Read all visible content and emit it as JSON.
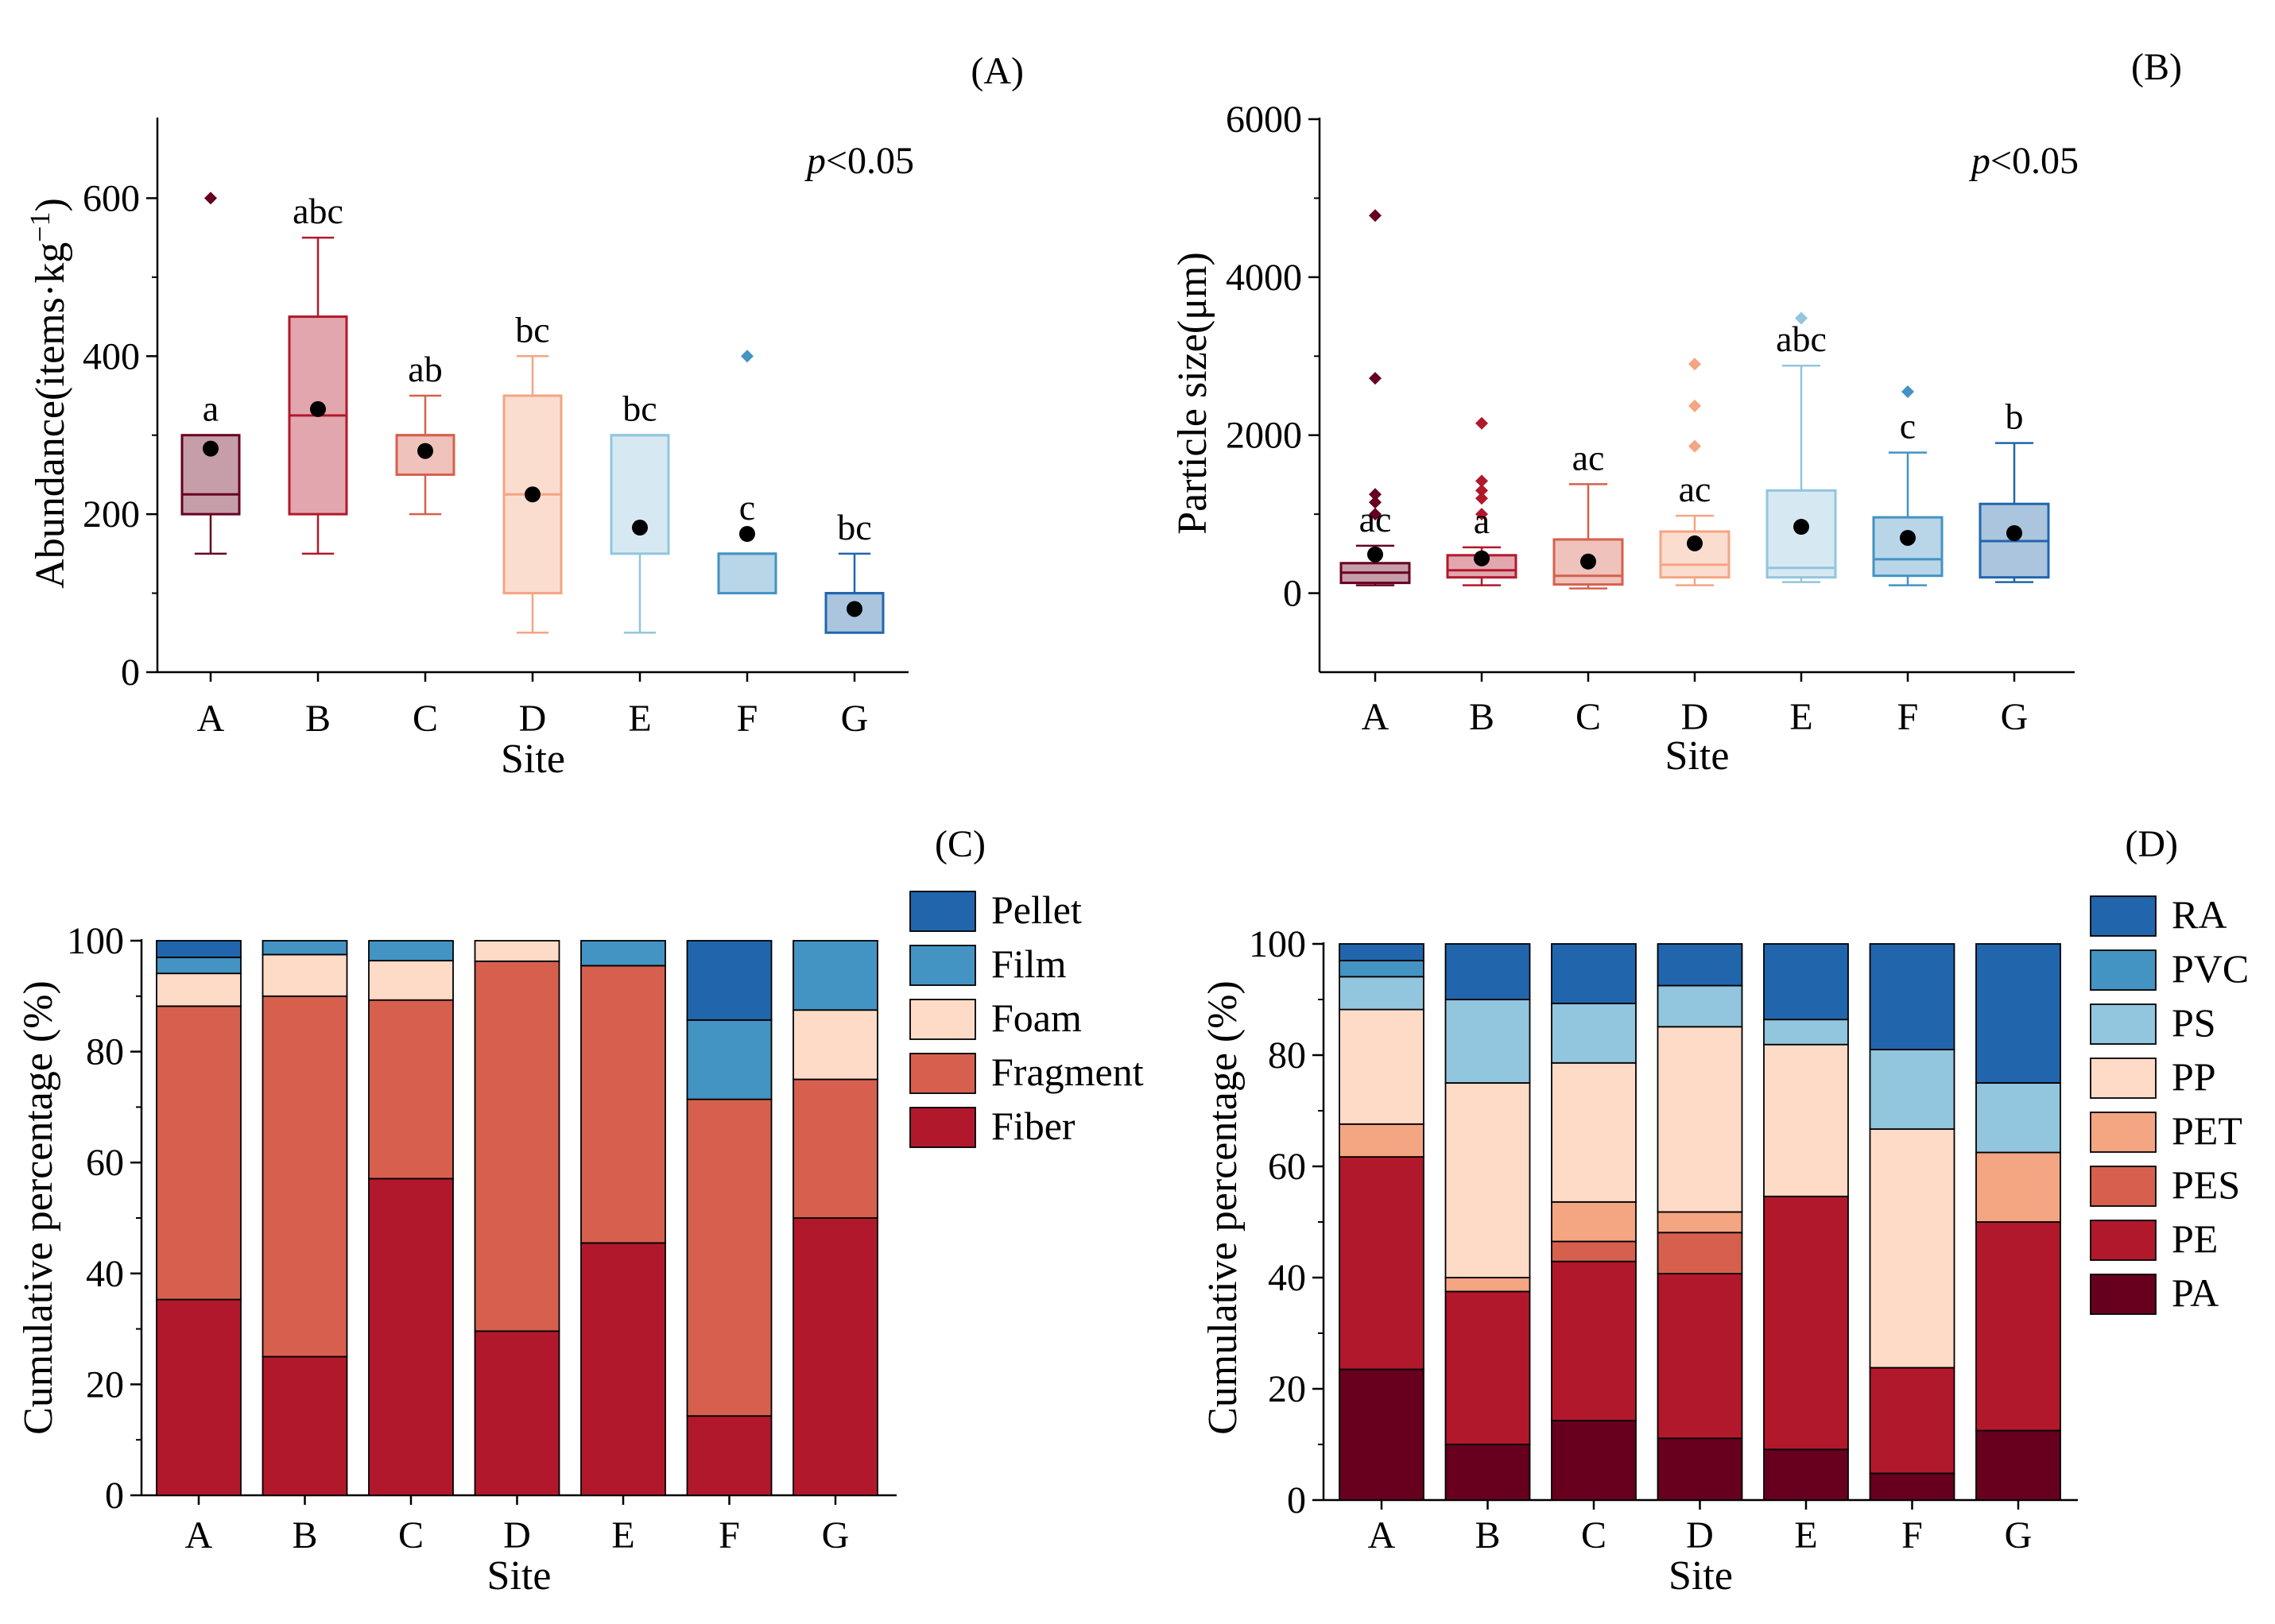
{
  "colors": {
    "A": "#67001f",
    "B": "#b2182b",
    "C": "#d6604d",
    "D": "#f4a582",
    "E": "#92c5de",
    "F": "#4393c3",
    "G": "#2166ac",
    "Pellet": "#2166ac",
    "Film": "#4393c3",
    "Foam": "#fddbc7",
    "Fragment": "#d6604d",
    "Fiber": "#b2182b",
    "RA": "#2166ac",
    "PVC": "#4393c3",
    "PS": "#92c5de",
    "PP": "#fddbc7",
    "PET": "#f4a582",
    "PES": "#d6604d",
    "PE": "#b2182b",
    "PA": "#67001f"
  },
  "chart_data": [
    {
      "panel": "(A)",
      "type": "box",
      "xlabel": "Site",
      "ylabel": "Abundance(items·kg⁻¹)",
      "ylabel_main": "Abundance(items·kg",
      "ylabel_sup": "−1",
      "ylabel_close": ")",
      "annotation_p": "p",
      "annotation_rest": "<0.05",
      "ylim": [
        0,
        700
      ],
      "yticks": [
        0,
        200,
        400,
        600
      ],
      "ytick_labels": [
        "0",
        "200",
        "400",
        "600"
      ],
      "categories": [
        "A",
        "B",
        "C",
        "D",
        "E",
        "F",
        "G"
      ],
      "boxes": [
        {
          "site": "A",
          "whisker_low": 150,
          "q1": 200,
          "median": 225,
          "q3": 300,
          "whisker_high": 300,
          "mean": 283,
          "outliers": [
            600
          ],
          "letter": "a"
        },
        {
          "site": "B",
          "whisker_low": 150,
          "q1": 200,
          "median": 325,
          "q3": 450,
          "whisker_high": 550,
          "mean": 333,
          "outliers": [],
          "letter": "abc"
        },
        {
          "site": "C",
          "whisker_low": 200,
          "q1": 250,
          "median": 300,
          "q3": 300,
          "whisker_high": 350,
          "mean": 280,
          "outliers": [],
          "letter": "ab"
        },
        {
          "site": "D",
          "whisker_low": 50,
          "q1": 100,
          "median": 225,
          "q3": 350,
          "whisker_high": 400,
          "mean": 225,
          "outliers": [],
          "letter": "bc"
        },
        {
          "site": "E",
          "whisker_low": 50,
          "q1": 150,
          "median": 300,
          "q3": 300,
          "whisker_high": 300,
          "mean": 183,
          "outliers": [],
          "letter": "bc"
        },
        {
          "site": "F",
          "whisker_low": 100,
          "q1": 100,
          "median": 150,
          "q3": 150,
          "whisker_high": 150,
          "mean": 175,
          "outliers": [
            400
          ],
          "letter": "c"
        },
        {
          "site": "G",
          "whisker_low": 50,
          "q1": 50,
          "median": 100,
          "q3": 100,
          "whisker_high": 150,
          "mean": 80,
          "outliers": [],
          "letter": "bc"
        }
      ]
    },
    {
      "panel": "(B)",
      "type": "box",
      "xlabel": "Site",
      "ylabel": "Particle size(μm)",
      "annotation_p": "p",
      "annotation_rest": "<0.05",
      "ylim": [
        -1000,
        6000
      ],
      "yticks": [
        0,
        2000,
        4000,
        6000
      ],
      "ytick_labels": [
        "0",
        "2000",
        "4000",
        "6000"
      ],
      "categories": [
        "A",
        "B",
        "C",
        "D",
        "E",
        "F",
        "G"
      ],
      "boxes": [
        {
          "site": "A",
          "whisker_low": 100,
          "q1": 130,
          "median": 260,
          "q3": 380,
          "whisker_high": 600,
          "mean": 490,
          "outliers": [
            1000,
            1150,
            1250,
            2720,
            4780
          ],
          "letter": "ac"
        },
        {
          "site": "B",
          "whisker_low": 100,
          "q1": 200,
          "median": 290,
          "q3": 480,
          "whisker_high": 580,
          "mean": 440,
          "outliers": [
            1000,
            1200,
            1300,
            1420,
            2150
          ],
          "letter": "a"
        },
        {
          "site": "C",
          "whisker_low": 60,
          "q1": 110,
          "median": 220,
          "q3": 680,
          "whisker_high": 1380,
          "mean": 400,
          "outliers": [],
          "letter": "ac"
        },
        {
          "site": "D",
          "whisker_low": 100,
          "q1": 200,
          "median": 360,
          "q3": 780,
          "whisker_high": 980,
          "mean": 630,
          "outliers": [
            1860,
            2370,
            2900
          ],
          "letter": "ac"
        },
        {
          "site": "E",
          "whisker_low": 140,
          "q1": 200,
          "median": 320,
          "q3": 1300,
          "whisker_high": 2880,
          "mean": 840,
          "outliers": [
            3480
          ],
          "letter": "abc"
        },
        {
          "site": "F",
          "whisker_low": 100,
          "q1": 220,
          "median": 430,
          "q3": 960,
          "whisker_high": 1780,
          "mean": 700,
          "outliers": [
            2550
          ],
          "letter": "c"
        },
        {
          "site": "G",
          "whisker_low": 140,
          "q1": 200,
          "median": 660,
          "q3": 1130,
          "whisker_high": 1900,
          "mean": 760,
          "outliers": [],
          "letter": "b"
        }
      ]
    },
    {
      "panel": "(C)",
      "type": "stacked_bar",
      "xlabel": "Site",
      "ylabel": "Cumulative percentage (%)",
      "ylim": [
        0,
        100
      ],
      "yticks": [
        0,
        20,
        40,
        60,
        80,
        100
      ],
      "ytick_labels": [
        "0",
        "20",
        "40",
        "60",
        "80",
        "100"
      ],
      "categories": [
        "A",
        "B",
        "C",
        "D",
        "E",
        "F",
        "G"
      ],
      "series": [
        {
          "name": "Fiber",
          "values": [
            35.3,
            25.0,
            57.1,
            29.6,
            45.5,
            14.3,
            50.0
          ]
        },
        {
          "name": "Fragment",
          "values": [
            52.9,
            65.0,
            32.2,
            66.7,
            50.0,
            57.1,
            25.0
          ]
        },
        {
          "name": "Foam",
          "values": [
            5.9,
            7.5,
            7.1,
            3.7,
            0.0,
            0.0,
            12.5
          ]
        },
        {
          "name": "Film",
          "values": [
            2.9,
            2.5,
            3.6,
            0.0,
            4.5,
            14.3,
            12.5
          ]
        },
        {
          "name": "Pellet",
          "values": [
            3.0,
            0.0,
            0.0,
            0.0,
            0.0,
            14.3,
            0.0
          ]
        }
      ],
      "legend_order": [
        "Pellet",
        "Film",
        "Foam",
        "Fragment",
        "Fiber"
      ]
    },
    {
      "panel": "(D)",
      "type": "stacked_bar",
      "xlabel": "Site",
      "ylabel": "Cumulative percentage (%)",
      "ylim": [
        0,
        100
      ],
      "yticks": [
        0,
        20,
        40,
        60,
        80,
        100
      ],
      "ytick_labels": [
        "0",
        "20",
        "40",
        "60",
        "80",
        "100"
      ],
      "categories": [
        "A",
        "B",
        "C",
        "D",
        "E",
        "F",
        "G"
      ],
      "series": [
        {
          "name": "PA",
          "values": [
            23.5,
            10.0,
            14.3,
            11.1,
            9.1,
            4.8,
            12.5
          ]
        },
        {
          "name": "PE",
          "values": [
            38.2,
            27.5,
            28.6,
            29.6,
            45.5,
            19.0,
            37.5
          ]
        },
        {
          "name": "PES",
          "values": [
            0.0,
            0.0,
            3.6,
            7.4,
            0.0,
            0.0,
            0.0
          ]
        },
        {
          "name": "PET",
          "values": [
            5.9,
            2.5,
            7.1,
            3.7,
            0.0,
            0.0,
            12.5
          ]
        },
        {
          "name": "PP",
          "values": [
            20.6,
            35.0,
            25.0,
            33.3,
            27.3,
            42.9,
            0.0
          ]
        },
        {
          "name": "PS",
          "values": [
            5.9,
            15.0,
            10.7,
            7.4,
            4.5,
            14.3,
            12.5
          ]
        },
        {
          "name": "PVC",
          "values": [
            2.9,
            0.0,
            0.0,
            0.0,
            0.0,
            0.0,
            0.0
          ]
        },
        {
          "name": "RA",
          "values": [
            3.0,
            10.0,
            10.7,
            7.5,
            13.6,
            19.0,
            25.0
          ]
        }
      ],
      "legend_order": [
        "RA",
        "PVC",
        "PS",
        "PP",
        "PET",
        "PES",
        "PE",
        "PA"
      ]
    }
  ]
}
